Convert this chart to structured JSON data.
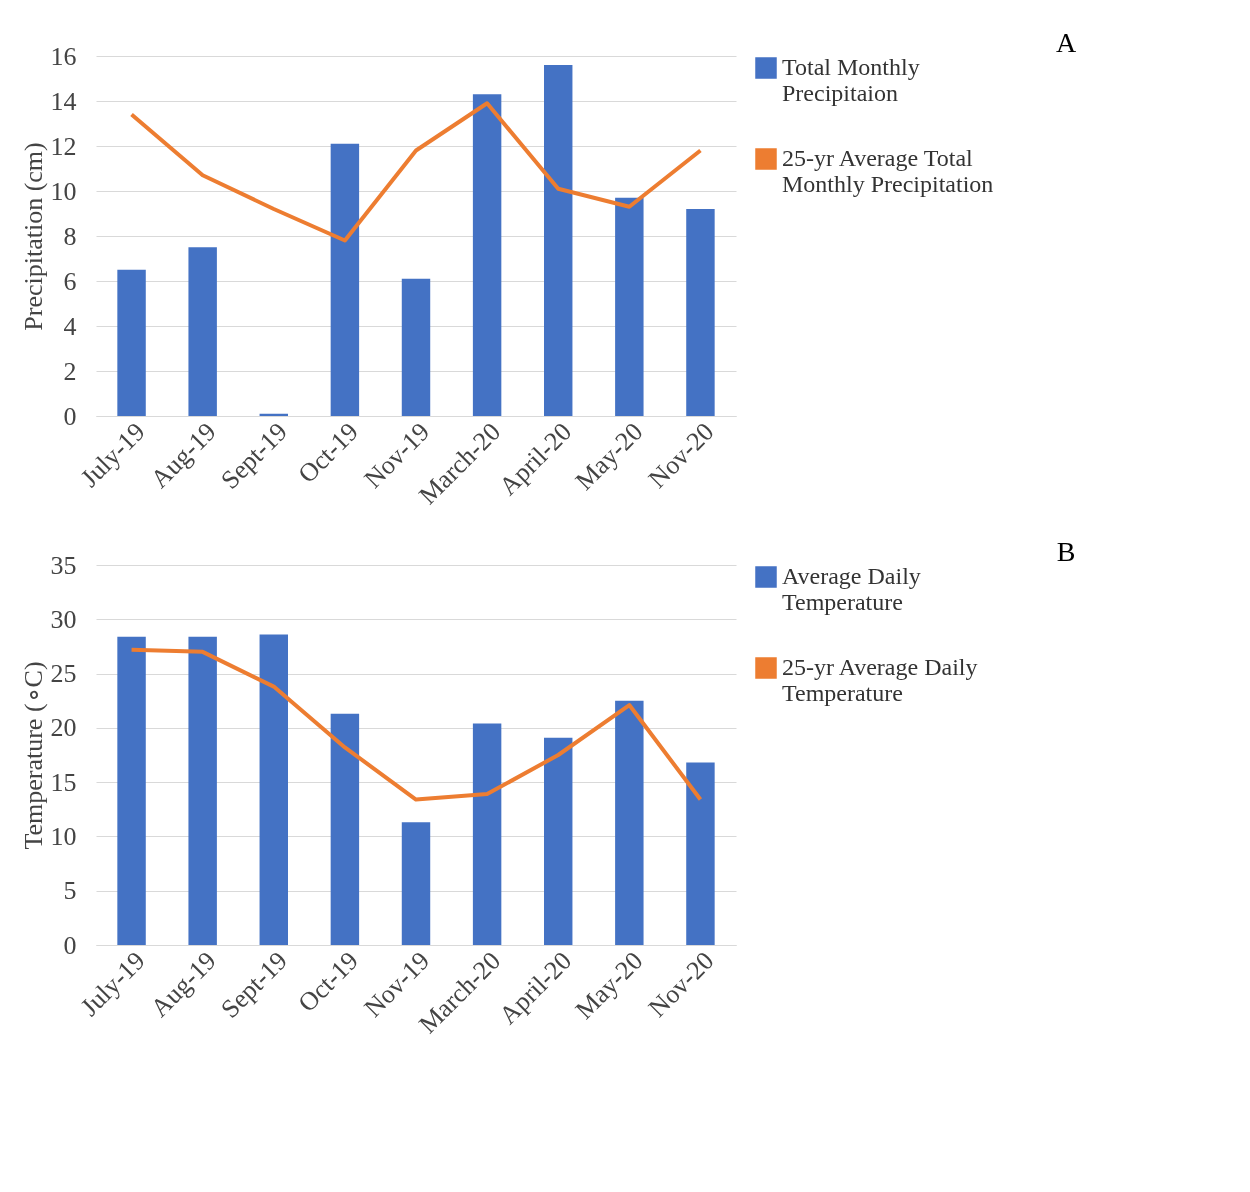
{
  "chart_data": [
    {
      "type": "bar",
      "categories": [
        "July-19",
        "Aug-19",
        "Sept-19",
        "Oct-19",
        "Nov-19",
        "March-20",
        "April-20",
        "May-20",
        "Nov-20"
      ],
      "ylabel": "Precipitation (cm)",
      "ylim": [
        0,
        16
      ],
      "yticks": [
        0,
        2,
        4,
        6,
        8,
        10,
        12,
        14,
        16
      ],
      "grid": "y",
      "legend": "right",
      "annotations": [
        "A"
      ],
      "series": [
        {
          "name": "Total Monthly Precipitaion",
          "color": "#4472c4",
          "values": [
            6.5,
            7.5,
            0.1,
            12.1,
            6.1,
            14.3,
            15.6,
            9.7,
            9.2
          ]
        },
        {
          "name": "25-yr Average Total Monthly Precipitation",
          "type": "line",
          "color": "#ed7d31",
          "values": [
            13.4,
            10.7,
            9.2,
            7.8,
            11.8,
            13.9,
            10.1,
            9.3,
            11.8
          ]
        }
      ]
    },
    {
      "type": "bar",
      "categories": [
        "July-19",
        "Aug-19",
        "Sept-19",
        "Oct-19",
        "Nov-19",
        "March-20",
        "April-20",
        "May-20",
        "Nov-20"
      ],
      "ylabel": "Temperature (∘C)",
      "ylim": [
        0,
        35
      ],
      "yticks": [
        0,
        5,
        10,
        15,
        20,
        25,
        30,
        35
      ],
      "grid": "y",
      "legend": "right",
      "annotations": [
        "B"
      ],
      "series": [
        {
          "name": "Average Daily Temperature",
          "color": "#4472c4",
          "values": [
            28.4,
            28.4,
            28.6,
            21.3,
            11.3,
            20.4,
            19.1,
            22.5,
            16.8
          ]
        },
        {
          "name": "25-yr Average Daily Temperature",
          "type": "line",
          "color": "#ed7d31",
          "values": [
            27.2,
            27.0,
            23.8,
            18.2,
            13.4,
            13.9,
            17.5,
            22.1,
            13.4
          ]
        }
      ]
    }
  ]
}
